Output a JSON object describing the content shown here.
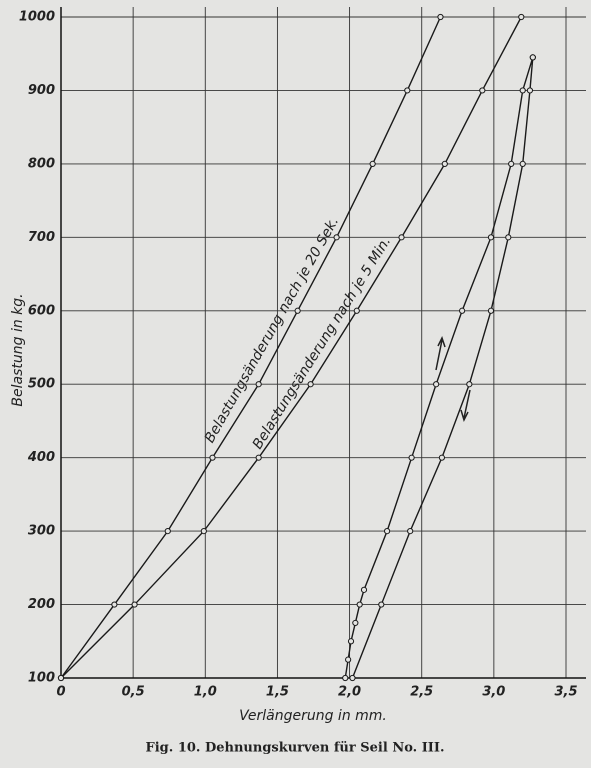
{
  "chart_data": {
    "type": "line",
    "xlabel": "Verlängerung in mm.",
    "ylabel": "Belastung in kg.",
    "caption": "Fig. 10. Dehnungskurven für Seil No. III.",
    "annotations": [
      "Belastungsänderung nach je 20 Sek.",
      "Belastungsänderung nach je 5 Min."
    ],
    "xlim": [
      0,
      3.5
    ],
    "xticks": [
      0,
      {
        "value": 0.5,
        "label": "0,5"
      },
      {
        "value": 1.0,
        "label": "1,0"
      },
      {
        "value": 1.5,
        "label": "1,5"
      },
      {
        "value": 2.0,
        "label": "2,0"
      },
      {
        "value": 2.5,
        "label": "2,5"
      },
      {
        "value": 3.0,
        "label": "3,0"
      },
      {
        "value": 3.5,
        "label": "3,5"
      }
    ],
    "ylim": [
      100,
      1000
    ],
    "yticks": [
      100,
      200,
      300,
      400,
      500,
      600,
      700,
      800,
      900,
      1000
    ],
    "grid": true,
    "series": [
      {
        "color": "#1a1a1a",
        "x": [
          0,
          0.37,
          0.74,
          1.05,
          1.37,
          1.64,
          1.91,
          2.16,
          2.4,
          2.63
        ],
        "values": [
          100,
          200,
          300,
          400,
          500,
          600,
          700,
          800,
          900,
          1000
        ]
      },
      {
        "color": "#1a1a1a",
        "x": [
          0,
          0.51,
          0.99,
          1.37,
          1.73,
          2.05,
          2.36,
          2.66,
          2.92,
          3.19
        ],
        "values": [
          100,
          200,
          300,
          400,
          500,
          600,
          700,
          800,
          900,
          1000
        ]
      },
      {
        "color": "#1a1a1a",
        "x": [
          1.97,
          1.99,
          2.01,
          2.04,
          2.07,
          2.1,
          2.26,
          2.43,
          2.6,
          2.78,
          2.98,
          3.12,
          3.2,
          3.27
        ],
        "values": [
          100,
          125,
          150,
          175,
          200,
          220,
          300,
          400,
          500,
          600,
          700,
          800,
          900,
          945
        ]
      },
      {
        "color": "#1a1a1a",
        "x": [
          3.27,
          3.25,
          3.2,
          3.1,
          2.98,
          2.83,
          2.64,
          2.42,
          2.22,
          2.02
        ],
        "values": [
          945,
          900,
          800,
          700,
          600,
          500,
          400,
          300,
          200,
          100
        ]
      }
    ]
  }
}
